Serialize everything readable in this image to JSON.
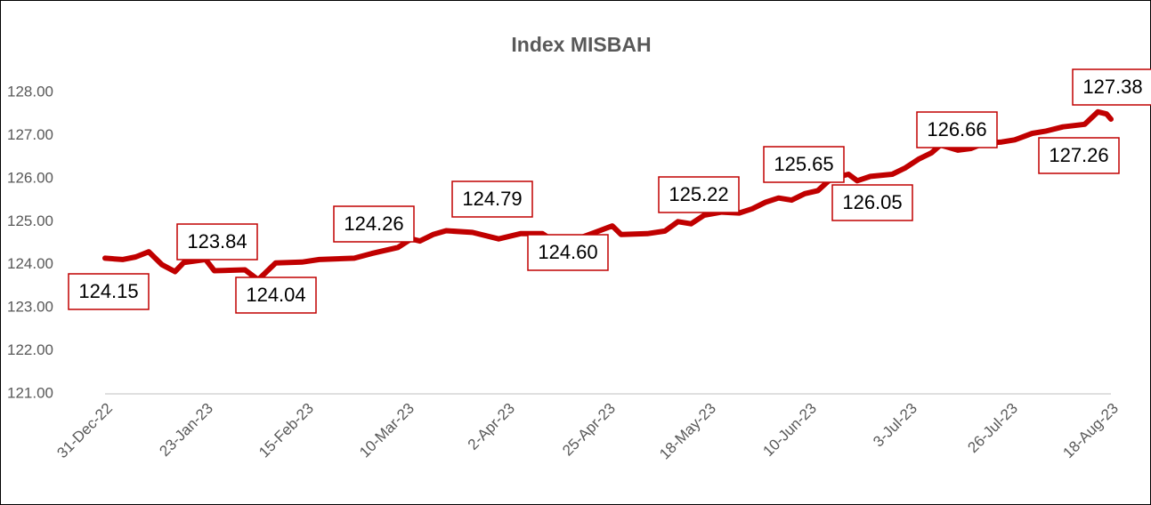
{
  "chart_data": {
    "type": "line",
    "title": "Index MISBAH",
    "x": [
      "31-Dec-22",
      "4-Jan-23",
      "7-Jan-23",
      "10-Jan-23",
      "13-Jan-23",
      "16-Jan-23",
      "18-Jan-23",
      "23-Jan-23",
      "25-Jan-23",
      "1-Feb-23",
      "4-Feb-23",
      "8-Feb-23",
      "14-Feb-23",
      "18-Feb-23",
      "26-Feb-23",
      "2-Mar-23",
      "8-Mar-23",
      "11-Mar-23",
      "13-Mar-23",
      "16-Mar-23",
      "19-Mar-23",
      "25-Mar-23",
      "31-Mar-23",
      "5-Apr-23",
      "10-Apr-23",
      "14-Apr-23",
      "18-Apr-23",
      "22-Apr-23",
      "26-Apr-23",
      "28-Apr-23",
      "4-May-23",
      "8-May-23",
      "11-May-23",
      "14-May-23",
      "17-May-23",
      "21-May-23",
      "25-May-23",
      "28-May-23",
      "31-May-23",
      "3-Jun-23",
      "6-Jun-23",
      "9-Jun-23",
      "12-Jun-23",
      "15-Jun-23",
      "19-Jun-23",
      "21-Jun-23",
      "24-Jun-23",
      "29-Jun-23",
      "2-Jul-23",
      "5-Jul-23",
      "8-Jul-23",
      "10-Jul-23",
      "14-Jul-23",
      "17-Jul-23",
      "20-Jul-23",
      "24-Jul-23",
      "27-Jul-23",
      "31-Jul-23",
      "3-Aug-23",
      "7-Aug-23",
      "12-Aug-23",
      "15-Aug-23",
      "17-Aug-23",
      "18-Aug-23"
    ],
    "series": [
      {
        "name": "Index MISBAH",
        "color": "#c00000",
        "values": [
          124.15,
          124.12,
          124.18,
          124.3,
          124.0,
          123.84,
          124.05,
          124.12,
          123.86,
          123.88,
          123.65,
          124.04,
          124.06,
          124.12,
          124.15,
          124.26,
          124.4,
          124.6,
          124.55,
          124.7,
          124.79,
          124.75,
          124.6,
          124.72,
          124.72,
          124.45,
          124.6,
          124.75,
          124.9,
          124.7,
          124.72,
          124.78,
          125.0,
          124.95,
          125.15,
          125.22,
          125.2,
          125.3,
          125.45,
          125.55,
          125.5,
          125.65,
          125.72,
          126.0,
          126.1,
          125.95,
          126.05,
          126.1,
          126.25,
          126.45,
          126.6,
          126.78,
          126.66,
          126.7,
          126.82,
          126.85,
          126.9,
          127.05,
          127.1,
          127.2,
          127.26,
          127.55,
          127.5,
          127.38
        ]
      }
    ],
    "annotations": [
      {
        "x": "31-Dec-22",
        "label": "124.15"
      },
      {
        "x": "16-Jan-23",
        "label": "123.84"
      },
      {
        "x": "8-Feb-23",
        "label": "124.04"
      },
      {
        "x": "2-Mar-23",
        "label": "124.26"
      },
      {
        "x": "19-Mar-23",
        "label": "124.79"
      },
      {
        "x": "18-Apr-23",
        "label": "124.60"
      },
      {
        "x": "21-May-23",
        "label": "125.22"
      },
      {
        "x": "9-Jun-23",
        "label": "125.65"
      },
      {
        "x": "24-Jun-23",
        "label": "126.05"
      },
      {
        "x": "14-Jul-23",
        "label": "126.66"
      },
      {
        "x": "12-Aug-23",
        "label": "127.26"
      },
      {
        "x": "18-Aug-23",
        "label": "127.38"
      }
    ],
    "xticks": [
      "31-Dec-22",
      "23-Jan-23",
      "15-Feb-23",
      "10-Mar-23",
      "2-Apr-23",
      "25-Apr-23",
      "18-May-23",
      "10-Jun-23",
      "3-Jul-23",
      "26-Jul-23",
      "18-Aug-23"
    ],
    "ylim": [
      121,
      128
    ],
    "yticks": [
      {
        "value": 121,
        "label": "121.00"
      },
      {
        "value": 122,
        "label": "122.00"
      },
      {
        "value": 123,
        "label": "123.00"
      },
      {
        "value": 124,
        "label": "124.00"
      },
      {
        "value": 125,
        "label": "125.00"
      },
      {
        "value": 126,
        "label": "126.00"
      },
      {
        "value": 127,
        "label": "127.00"
      },
      {
        "value": 128,
        "label": "128.00"
      }
    ],
    "grid": false
  }
}
